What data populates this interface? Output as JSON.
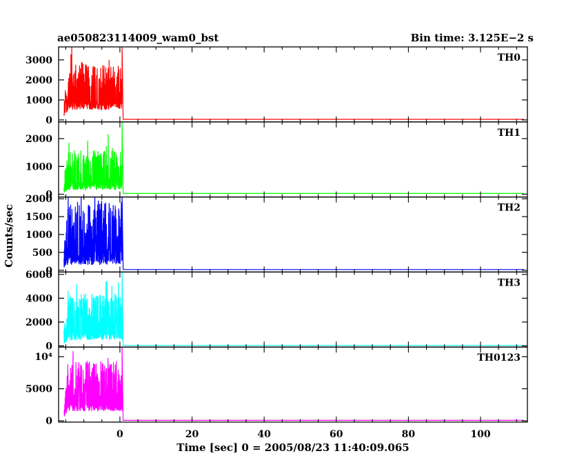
{
  "header": {
    "title": "ae050823114009_wam0_bst",
    "bin_time": "Bin time: 3.125E−2 s"
  },
  "axes": {
    "ylabel": "Counts/sec",
    "xlabel": "Time [sec] 0 = 2005/08/23 11:40:09.065"
  },
  "chart_data": {
    "type": "line",
    "xlim": [
      -17,
      113
    ],
    "x_ticks": [
      0,
      20,
      40,
      60,
      80,
      100
    ],
    "panels": [
      {
        "name": "TH0",
        "color": "#ff0000",
        "ylim": [
          -100,
          3650
        ],
        "y_ticks": [
          0,
          1000,
          2000,
          3000
        ],
        "y_tick_labels": [
          "0",
          "1000",
          "2000",
          "3000"
        ],
        "burst": {
          "start": -15.5,
          "end": 0.6,
          "baseline": 1700,
          "spread": 1100,
          "floor": 500,
          "peak": 3650,
          "tail": 30,
          "extend_to": 112
        }
      },
      {
        "name": "TH1",
        "color": "#00ff00",
        "ylim": [
          -100,
          2600
        ],
        "y_ticks": [
          0,
          1000,
          2000
        ],
        "y_tick_labels": [
          "0",
          "1000",
          "2000"
        ],
        "burst": {
          "start": -15.5,
          "end": 0.6,
          "baseline": 900,
          "spread": 700,
          "floor": 150,
          "peak": 2600,
          "tail": 30,
          "extend_to": 112
        }
      },
      {
        "name": "TH2",
        "color": "#0000ff",
        "ylim": [
          -50,
          2050
        ],
        "y_ticks": [
          0,
          500,
          1000,
          1500,
          2000
        ],
        "y_tick_labels": [
          "0",
          "500",
          "1000",
          "1500",
          "2000"
        ],
        "burst": {
          "start": -15.5,
          "end": 0.6,
          "baseline": 1050,
          "spread": 900,
          "floor": 150,
          "peak": 2050,
          "tail": 20,
          "extend_to": 112
        }
      },
      {
        "name": "TH3",
        "color": "#00ffff",
        "ylim": [
          -100,
          6200
        ],
        "y_ticks": [
          0,
          2000,
          4000,
          6000
        ],
        "y_tick_labels": [
          "0",
          "2000",
          "4000",
          "6000"
        ],
        "burst": {
          "start": -15.5,
          "end": 0.6,
          "baseline": 3000,
          "spread": 1400,
          "floor": 500,
          "peak": 6200,
          "tail": 40,
          "extend_to": 112
        }
      },
      {
        "name": "TH0123",
        "color": "#ff00ff",
        "ylim": [
          -200,
          11500
        ],
        "y_ticks": [
          0,
          5000,
          10000
        ],
        "y_tick_labels": [
          "0",
          "5000",
          "10⁴"
        ],
        "burst": {
          "start": -15.5,
          "end": 0.6,
          "baseline": 6500,
          "spread": 2800,
          "floor": 1500,
          "peak": 11500,
          "tail": 80,
          "extend_to": 112
        }
      }
    ]
  }
}
